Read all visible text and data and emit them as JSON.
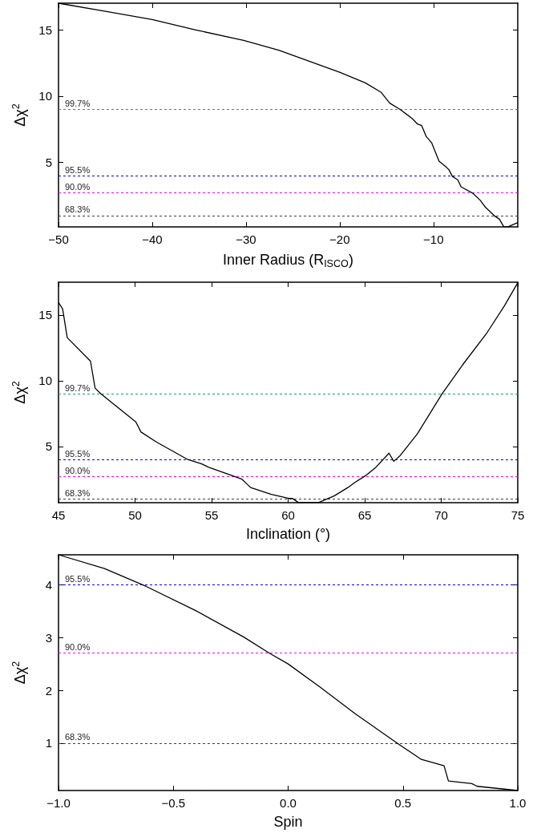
{
  "chart_data": [
    {
      "type": "line",
      "xlabel": "Inner Radius (R$_{ISCO}$)",
      "ylabel": "Δχ$^{2}$",
      "xlim": [
        -50,
        -1
      ],
      "xticks": [
        -50,
        -40,
        -30,
        -20,
        -10
      ],
      "ylim": [
        0.15,
        17
      ],
      "yticks": [
        5,
        10,
        15
      ],
      "grid": false,
      "marker": "none",
      "line_style": "solid",
      "x": [
        -50,
        -45.1,
        -40,
        -35.45,
        -30.25,
        -26.5,
        -20,
        -17.26,
        -15.6,
        -14.66,
        -13.55,
        -12.25,
        -11.7,
        -11.25,
        -10.76,
        -10.2,
        -9.4,
        -8.7,
        -8.35,
        -7.97,
        -7.4,
        -7.05,
        -5.75,
        -5,
        -4.45,
        -3.5,
        -2.96,
        -2.5,
        -2.04,
        -1
      ],
      "series": [
        {
          "color": "#000000",
          "values": [
            17.0,
            16.4,
            15.77,
            15.0,
            14.2,
            13.46,
            11.8,
            11.0,
            10.3,
            9.47,
            9.0,
            8.3,
            7.9,
            7.78,
            6.95,
            6.5,
            5.1,
            4.7,
            4.46,
            3.95,
            3.7,
            3.17,
            2.66,
            2.15,
            1.63,
            0.99,
            0.73,
            0.17,
            0.16,
            0.48
          ]
        }
      ],
      "ref_lines": [
        {
          "axis": "y",
          "value": 9,
          "color": "#1a9a80",
          "line_style": "dashed"
        },
        {
          "axis": "y",
          "value": 4,
          "color": "#0000ff",
          "line_style": "dashed"
        },
        {
          "axis": "y",
          "value": 2.71,
          "color": "#ff00ff",
          "line_style": "dashed"
        },
        {
          "axis": "y",
          "value": 1,
          "color": "#404040",
          "line_style": "dashed"
        }
      ],
      "annotations": [
        {
          "text": "99.7%",
          "x": -50,
          "y": 9
        },
        {
          "text": "95.5%",
          "x": -50,
          "y": 4
        },
        {
          "text": "90.0%",
          "x": -50,
          "y": 2.71
        },
        {
          "text": "68.3%",
          "x": -50,
          "y": 1
        }
      ]
    },
    {
      "type": "line",
      "xlabel": "Inclination (°)",
      "ylabel": "Δχ$^{2}$",
      "xlim": [
        45,
        75
      ],
      "xticks": [
        45,
        50,
        55,
        60,
        65,
        70,
        75
      ],
      "ylim": [
        0.72,
        17.5
      ],
      "yticks": [
        5,
        10,
        15
      ],
      "grid": false,
      "marker": "none",
      "line_style": "solid",
      "x": [
        45,
        45.27,
        45.57,
        47.09,
        47.39,
        47.77,
        50.05,
        50.39,
        51.41,
        53.45,
        54.36,
        54.82,
        56.07,
        56.98,
        57.32,
        57.55,
        58.9,
        60.05,
        60.27,
        60.68,
        61.98,
        63.0,
        63.9,
        64.36,
        65.05,
        65.73,
        66.59,
        66.9,
        67.32,
        68.45,
        70.05,
        71.41,
        73.0,
        74.14,
        75
      ],
      "series": [
        {
          "color": "#000000",
          "values": [
            15.97,
            15.46,
            13.28,
            11.49,
            9.44,
            9.0,
            6.87,
            6.1,
            5.33,
            4.0,
            3.67,
            3.41,
            2.9,
            2.51,
            2.13,
            1.87,
            1.36,
            1.05,
            1.05,
            0.73,
            0.73,
            1.23,
            1.87,
            2.26,
            2.77,
            3.41,
            4.49,
            3.87,
            4.31,
            5.97,
            9.0,
            11.23,
            13.67,
            15.72,
            17.46
          ]
        }
      ],
      "ref_lines": [
        {
          "axis": "y",
          "value": 9,
          "color": "#1a9a80",
          "line_style": "dashed"
        },
        {
          "axis": "y",
          "value": 4,
          "color": "#0000ff",
          "line_style": "dashed"
        },
        {
          "axis": "y",
          "value": 2.71,
          "color": "#ff00ff",
          "line_style": "dashed"
        },
        {
          "axis": "y",
          "value": 1,
          "color": "#404040",
          "line_style": "dashed"
        }
      ],
      "annotations": [
        {
          "text": "99.7%",
          "x": 45,
          "y": 9
        },
        {
          "text": "95.5%",
          "x": 45,
          "y": 4
        },
        {
          "text": "90.0%",
          "x": 45,
          "y": 2.71
        },
        {
          "text": "68.3%",
          "x": 45,
          "y": 1
        }
      ]
    },
    {
      "type": "line",
      "xlabel": "Spin",
      "ylabel": "Δχ$^{2}$",
      "xlim": [
        -1,
        1
      ],
      "xticks": [
        {
          "value": -1,
          "label": "−1.0"
        },
        {
          "value": -0.5,
          "label": "−0.5"
        },
        {
          "value": 0,
          "label": "0.0"
        },
        {
          "value": 0.5,
          "label": "0.5"
        },
        {
          "value": 1,
          "label": "1.0"
        }
      ],
      "ylim": [
        0.1,
        4.57
      ],
      "yticks": [
        1,
        2,
        3,
        4
      ],
      "grid": false,
      "marker": "none",
      "line_style": "solid",
      "x": [
        -1,
        -0.8,
        -0.618,
        -0.406,
        -0.193,
        -0.08,
        0,
        0.139,
        0.291,
        0.474,
        0.58,
        0.679,
        0.698,
        0.8,
        0.823,
        1
      ],
      "series": [
        {
          "color": "#000000",
          "values": [
            4.57,
            4.31,
            3.97,
            3.52,
            3.01,
            2.7,
            2.5,
            2.06,
            1.56,
            1.0,
            0.69,
            0.57,
            0.28,
            0.23,
            0.18,
            0.1
          ]
        }
      ],
      "ref_lines": [
        {
          "axis": "y",
          "value": 4,
          "color": "#0000ff",
          "line_style": "dashed"
        },
        {
          "axis": "y",
          "value": 2.71,
          "color": "#ff00ff",
          "line_style": "dashed"
        },
        {
          "axis": "y",
          "value": 1,
          "color": "#404040",
          "line_style": "dashed"
        }
      ],
      "annotations": [
        {
          "text": "95.5%",
          "x": -1,
          "y": 4
        },
        {
          "text": "90.0%",
          "x": -1,
          "y": 2.71
        },
        {
          "text": "68.3%",
          "x": -1,
          "y": 1
        }
      ]
    }
  ]
}
